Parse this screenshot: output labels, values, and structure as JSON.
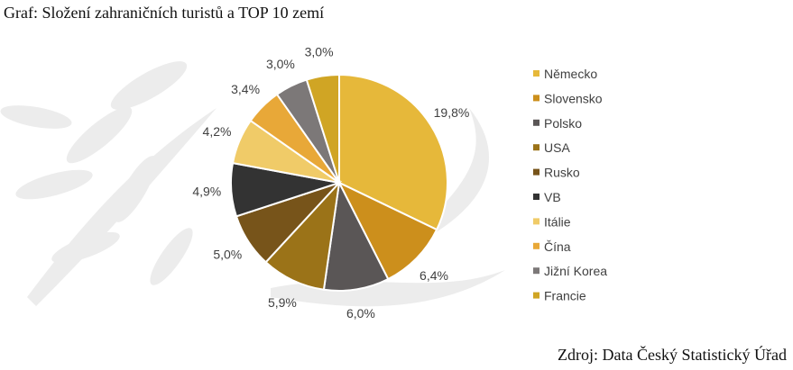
{
  "page": {
    "title": "Graf: Složení zahraničních turistů a TOP 10 zemí",
    "source": "Zdroj: Data Český Statistický Úřad"
  },
  "chart_data": {
    "type": "pie",
    "categories": [
      "Německo",
      "Slovensko",
      "Polsko",
      "USA",
      "Rusko",
      "VB",
      "Itálie",
      "Čína",
      "Jižní Korea",
      "Francie"
    ],
    "values": [
      19.8,
      6.4,
      6.0,
      5.9,
      5.0,
      4.9,
      4.2,
      3.4,
      3.0,
      3.0
    ],
    "value_labels": [
      "19,8%",
      "6,4%",
      "6,0%",
      "5,9%",
      "5,0%",
      "4,9%",
      "4,2%",
      "3,4%",
      "3,0%",
      "3,0%"
    ],
    "colors": [
      "#e6b83a",
      "#cc8f1c",
      "#5a5656",
      "#9b7318",
      "#77541a",
      "#333333",
      "#f0cb68",
      "#e8a838",
      "#7c7878",
      "#d0a524"
    ],
    "legend_position": "right"
  }
}
